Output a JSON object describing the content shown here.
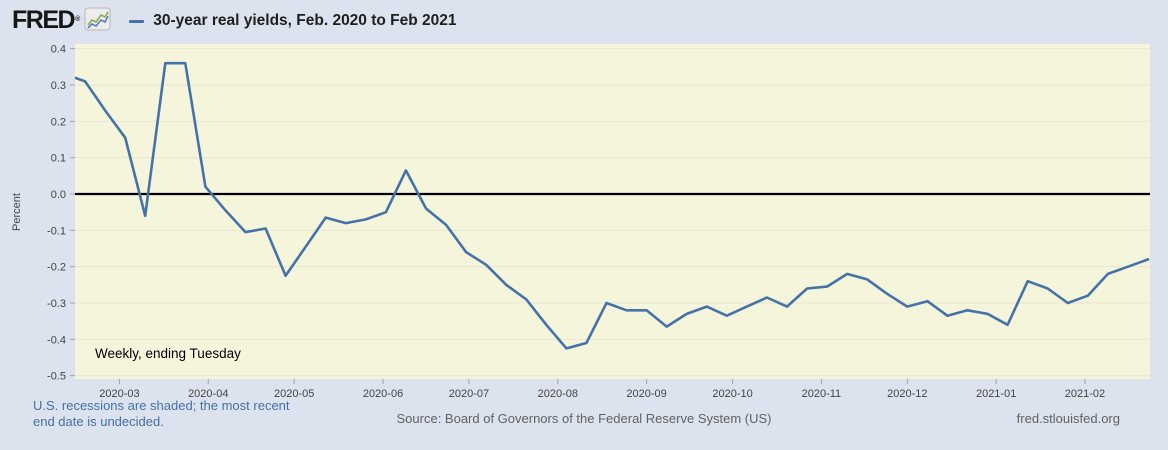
{
  "header": {
    "logo_text": "FRED",
    "registered_mark": "®",
    "legend_color": "#4572a7",
    "title": "30-year real yields, Feb. 2020 to Feb 2021"
  },
  "chart_data": {
    "type": "line",
    "title": "30-year real yields, Feb. 2020 to Feb 2021",
    "ylabel": "Percent",
    "frequency_note": "Weekly, ending Tuesday",
    "ylim": [
      -0.5,
      0.4
    ],
    "y_ticks": [
      0.4,
      0.3,
      0.2,
      0.1,
      0.0,
      -0.1,
      -0.2,
      -0.3,
      -0.4,
      -0.5
    ],
    "x_tick_labels": [
      "2020-03",
      "2020-04",
      "2020-05",
      "2020-06",
      "2020-07",
      "2020-08",
      "2020-09",
      "2020-10",
      "2020-11",
      "2020-12",
      "2021-01",
      "2021-02"
    ],
    "grid": "horizontal",
    "zero_line": true,
    "legend_position": "top",
    "plot_bg": "#f5f5dc",
    "grid_color": "#e8e8d2",
    "series": [
      {
        "name": "30-year real yields",
        "color": "#4572a7",
        "x": [
          "2020-02-11",
          "2020-02-18",
          "2020-02-25",
          "2020-03-03",
          "2020-03-10",
          "2020-03-17",
          "2020-03-24",
          "2020-03-31",
          "2020-04-07",
          "2020-04-14",
          "2020-04-21",
          "2020-04-28",
          "2020-05-05",
          "2020-05-12",
          "2020-05-19",
          "2020-05-26",
          "2020-06-02",
          "2020-06-09",
          "2020-06-16",
          "2020-06-23",
          "2020-06-30",
          "2020-07-07",
          "2020-07-14",
          "2020-07-21",
          "2020-07-28",
          "2020-08-04",
          "2020-08-11",
          "2020-08-18",
          "2020-08-25",
          "2020-09-01",
          "2020-09-08",
          "2020-09-15",
          "2020-09-22",
          "2020-09-29",
          "2020-10-06",
          "2020-10-13",
          "2020-10-20",
          "2020-10-27",
          "2020-11-03",
          "2020-11-10",
          "2020-11-17",
          "2020-11-24",
          "2020-12-01",
          "2020-12-08",
          "2020-12-15",
          "2020-12-22",
          "2020-12-29",
          "2021-01-05",
          "2021-01-12",
          "2021-01-19",
          "2021-01-26",
          "2021-02-02",
          "2021-02-09",
          "2021-02-16",
          "2021-02-23"
        ],
        "values": [
          0.33,
          0.31,
          0.23,
          0.155,
          -0.06,
          0.36,
          0.36,
          0.02,
          -0.045,
          -0.105,
          -0.095,
          -0.225,
          -0.145,
          -0.065,
          -0.08,
          -0.07,
          -0.05,
          0.065,
          -0.04,
          -0.085,
          -0.16,
          -0.195,
          -0.25,
          -0.29,
          -0.36,
          -0.425,
          -0.41,
          -0.3,
          -0.32,
          -0.32,
          -0.365,
          -0.33,
          -0.31,
          -0.335,
          -0.31,
          -0.285,
          -0.31,
          -0.26,
          -0.255,
          -0.22,
          -0.235,
          -0.275,
          -0.31,
          -0.295,
          -0.335,
          -0.32,
          -0.33,
          -0.36,
          -0.24,
          -0.26,
          -0.3,
          -0.28,
          -0.22,
          -0.2,
          -0.18
        ]
      }
    ]
  },
  "footer": {
    "recessions_note_line1": "U.S. recessions are shaded; the most recent",
    "recessions_note_line2": "end date is undecided.",
    "source": "Source: Board of Governors of the Federal Reserve System (US)",
    "site_link": "fred.stlouisfed.org"
  }
}
